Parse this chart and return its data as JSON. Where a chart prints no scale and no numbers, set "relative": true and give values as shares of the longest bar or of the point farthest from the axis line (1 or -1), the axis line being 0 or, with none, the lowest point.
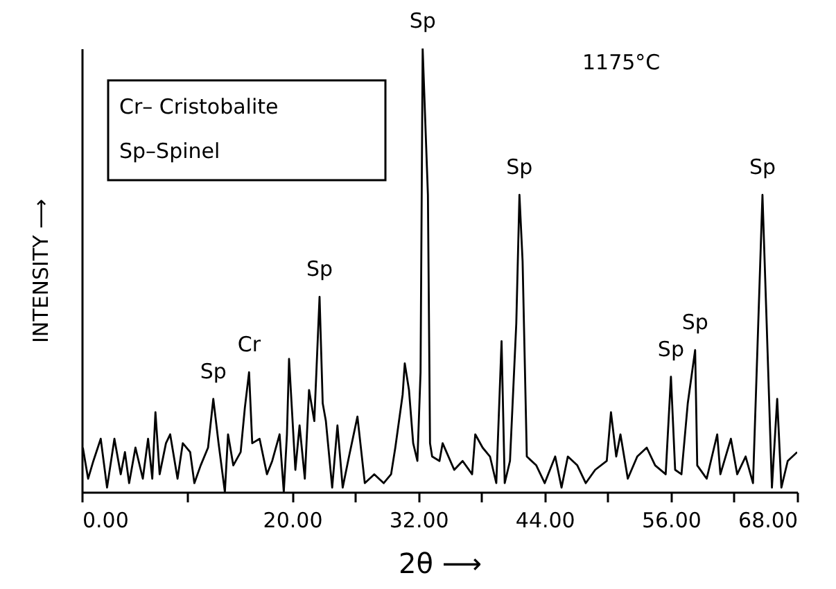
{
  "chart_data": {
    "type": "line",
    "relative": true,
    "xlabel": "2θ ⟶",
    "ylabel": "INTENSITY ⟶",
    "xlim": [
      0,
      68
    ],
    "xticks": [
      {
        "value": 0,
        "label": "0.00"
      },
      {
        "value": 10,
        "label": null
      },
      {
        "value": 20,
        "label": "20.00"
      },
      {
        "value": 26,
        "label": null
      },
      {
        "value": 32,
        "label": "32.00"
      },
      {
        "value": 38,
        "label": null
      },
      {
        "value": 44,
        "label": "44.00"
      },
      {
        "value": 50,
        "label": null
      },
      {
        "value": 56,
        "label": "56.00"
      },
      {
        "value": 62,
        "label": null
      },
      {
        "value": 68,
        "label": "68.00"
      }
    ],
    "tick_labels": "x",
    "series": [
      {
        "color": "#000000",
        "x": [
          0.1,
          0.6,
          1.1,
          1.8,
          2.4,
          3.1,
          3.7,
          4.1,
          4.5,
          5.1,
          5.8,
          6.3,
          6.7,
          7.0,
          7.4,
          8.0,
          8.4,
          9.1,
          9.6,
          10.3,
          10.7,
          11.3,
          12.0,
          12.5,
          13.0,
          13.6,
          13.9,
          14.4,
          15.1,
          15.5,
          15.9,
          16.2,
          16.9,
          17.6,
          18.1,
          18.8,
          19.2,
          19.5,
          19.7,
          20.3,
          20.7,
          21.2,
          21.6,
          22.1,
          22.6,
          22.9,
          23.2,
          23.8,
          24.3,
          24.8,
          25.4,
          26.2,
          26.9,
          27.8,
          28.7,
          29.4,
          29.8,
          30.5,
          30.7,
          31.1,
          31.5,
          31.9,
          32.2,
          32.4,
          32.9,
          33.1,
          33.3,
          34.0,
          34.3,
          35.4,
          36.2,
          37.1,
          37.4,
          38.1,
          38.8,
          39.4,
          39.9,
          40.2,
          40.7,
          41.3,
          41.6,
          41.9,
          42.3,
          43.2,
          44.0,
          45.0,
          45.6,
          46.2,
          47.1,
          47.9,
          48.8,
          49.9,
          50.3,
          50.8,
          51.2,
          51.9,
          52.8,
          53.7,
          54.5,
          55.5,
          56.0,
          56.4,
          57.0,
          57.6,
          58.3,
          58.5,
          59.4,
          60.4,
          60.7,
          61.7,
          62.3,
          63.1,
          63.8,
          64.3,
          64.7,
          65.1,
          65.6,
          66.1,
          66.5,
          67.1,
          68.0
        ],
        "values": [
          0.1,
          0.03,
          0.07,
          0.12,
          0.01,
          0.12,
          0.04,
          0.09,
          0.02,
          0.1,
          0.03,
          0.12,
          0.03,
          0.18,
          0.04,
          0.11,
          0.13,
          0.03,
          0.11,
          0.09,
          0.02,
          0.06,
          0.1,
          0.21,
          0.11,
          0.0,
          0.13,
          0.06,
          0.09,
          0.19,
          0.27,
          0.11,
          0.12,
          0.04,
          0.07,
          0.13,
          0.0,
          0.13,
          0.3,
          0.05,
          0.15,
          0.03,
          0.23,
          0.16,
          0.44,
          0.2,
          0.16,
          0.01,
          0.15,
          0.01,
          0.08,
          0.17,
          0.02,
          0.04,
          0.02,
          0.04,
          0.1,
          0.22,
          0.29,
          0.23,
          0.11,
          0.07,
          0.27,
          1,
          0.67,
          0.11,
          0.08,
          0.07,
          0.11,
          0.05,
          0.07,
          0.04,
          0.13,
          0.1,
          0.08,
          0.02,
          0.34,
          0.02,
          0.07,
          0.38,
          0.67,
          0.52,
          0.08,
          0.06,
          0.02,
          0.08,
          0.01,
          0.08,
          0.06,
          0.02,
          0.05,
          0.07,
          0.18,
          0.08,
          0.13,
          0.03,
          0.08,
          0.1,
          0.06,
          0.04,
          0.26,
          0.05,
          0.04,
          0.2,
          0.32,
          0.06,
          0.03,
          0.13,
          0.04,
          0.12,
          0.04,
          0.08,
          0.02,
          0.38,
          0.67,
          0.38,
          0.01,
          0.21,
          0.01,
          0.07,
          0.09
        ]
      }
    ],
    "annotations": [
      {
        "text": "Sp",
        "x": 12.5,
        "y": 0.21
      },
      {
        "text": "Cr",
        "x": 15.9,
        "y": 0.27
      },
      {
        "text": "Sp",
        "x": 22.6,
        "y": 0.44
      },
      {
        "text": "Sp",
        "x": 32.4,
        "y": 1
      },
      {
        "text": "Sp",
        "x": 41.6,
        "y": 0.67
      },
      {
        "text": "Sp",
        "x": 56.0,
        "y": 0.26
      },
      {
        "text": "Sp",
        "x": 58.3,
        "y": 0.32
      },
      {
        "text": "Sp",
        "x": 64.7,
        "y": 0.67
      },
      "Cr– Cristobalite",
      "Sp–Spinel",
      "1175°C"
    ]
  }
}
